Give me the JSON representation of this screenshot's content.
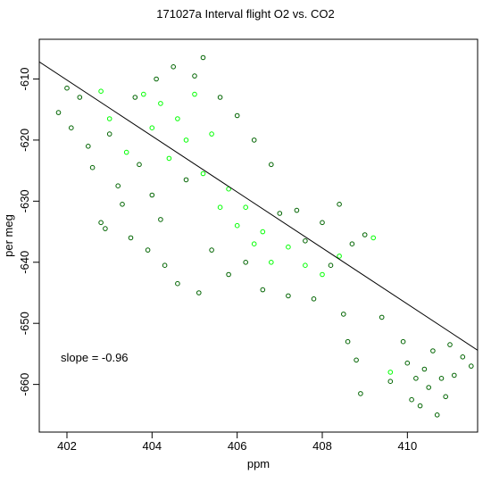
{
  "chart_data": {
    "type": "scatter",
    "title": "171027a   Interval flight O2 vs. CO2",
    "xlabel": "ppm",
    "ylabel": "per meg",
    "xlim": [
      401.35,
      411.65
    ],
    "ylim": [
      -667.8,
      -603.5
    ],
    "x_ticks": [
      402,
      404,
      406,
      408,
      410
    ],
    "x_tick_labels": [
      "402",
      "404",
      "406",
      "408",
      "410"
    ],
    "y_ticks": [
      -660,
      -650,
      -640,
      -630,
      -620,
      -610
    ],
    "y_tick_labels": [
      "-660",
      "-650",
      "-640",
      "-630",
      "-620",
      "-610"
    ],
    "grid": false,
    "legend": "none",
    "annotation": "slope =  -0.96",
    "regression_line": {
      "slope": -0.96,
      "points": [
        [
          401.35,
          -607.2
        ],
        [
          411.65,
          -654.4
        ]
      ]
    },
    "colors": {
      "points_dark": "#006400",
      "points_bright": "#00ff00",
      "line": "#000000"
    },
    "series": [
      {
        "marker": "open-circle",
        "color": "#006400",
        "points": [
          [
            401.8,
            -615.5
          ],
          [
            402.0,
            -611.5
          ],
          [
            402.1,
            -618.0
          ],
          [
            402.3,
            -613.0
          ],
          [
            402.5,
            -621.0
          ],
          [
            402.6,
            -624.5
          ],
          [
            402.8,
            -633.5
          ],
          [
            402.9,
            -634.5
          ],
          [
            403.0,
            -619.0
          ],
          [
            403.2,
            -627.5
          ],
          [
            403.3,
            -630.5
          ],
          [
            403.5,
            -636.0
          ],
          [
            403.6,
            -613.0
          ],
          [
            403.7,
            -624.0
          ],
          [
            403.9,
            -638.0
          ],
          [
            404.0,
            -629.0
          ],
          [
            404.1,
            -610.0
          ],
          [
            404.2,
            -633.0
          ],
          [
            404.3,
            -640.5
          ],
          [
            404.5,
            -608.0
          ],
          [
            404.6,
            -643.5
          ],
          [
            404.8,
            -626.5
          ],
          [
            405.0,
            -609.5
          ],
          [
            405.1,
            -645.0
          ],
          [
            405.2,
            -606.5
          ],
          [
            405.4,
            -638.0
          ],
          [
            405.6,
            -613.0
          ],
          [
            405.8,
            -642.0
          ],
          [
            406.0,
            -616.0
          ],
          [
            406.2,
            -640.0
          ],
          [
            406.4,
            -620.0
          ],
          [
            406.6,
            -644.5
          ],
          [
            406.8,
            -624.0
          ],
          [
            407.0,
            -632.0
          ],
          [
            407.2,
            -645.5
          ],
          [
            407.4,
            -631.5
          ],
          [
            407.6,
            -636.5
          ],
          [
            407.8,
            -646.0
          ],
          [
            408.0,
            -633.5
          ],
          [
            408.2,
            -640.5
          ],
          [
            408.4,
            -630.5
          ],
          [
            408.5,
            -648.5
          ],
          [
            408.6,
            -653.0
          ],
          [
            408.7,
            -637.0
          ],
          [
            408.8,
            -656.0
          ],
          [
            408.9,
            -661.5
          ],
          [
            409.0,
            -635.5
          ],
          [
            409.4,
            -649.0
          ],
          [
            409.6,
            -659.5
          ],
          [
            409.9,
            -653.0
          ],
          [
            410.0,
            -656.5
          ],
          [
            410.1,
            -662.5
          ],
          [
            410.2,
            -659.0
          ],
          [
            410.3,
            -663.5
          ],
          [
            410.4,
            -657.5
          ],
          [
            410.5,
            -660.5
          ],
          [
            410.6,
            -654.5
          ],
          [
            410.7,
            -665.0
          ],
          [
            410.8,
            -659.0
          ],
          [
            410.9,
            -662.0
          ],
          [
            411.0,
            -653.5
          ],
          [
            411.1,
            -658.5
          ],
          [
            411.3,
            -655.5
          ],
          [
            411.5,
            -657.0
          ]
        ]
      },
      {
        "marker": "open-circle",
        "color": "#00ff00",
        "points": [
          [
            402.8,
            -612.0
          ],
          [
            403.0,
            -616.5
          ],
          [
            403.4,
            -622.0
          ],
          [
            403.8,
            -612.5
          ],
          [
            404.0,
            -618.0
          ],
          [
            404.2,
            -614.0
          ],
          [
            404.4,
            -623.0
          ],
          [
            404.6,
            -616.5
          ],
          [
            404.8,
            -620.0
          ],
          [
            405.0,
            -612.5
          ],
          [
            405.2,
            -625.5
          ],
          [
            405.4,
            -619.0
          ],
          [
            405.6,
            -631.0
          ],
          [
            405.8,
            -628.0
          ],
          [
            406.0,
            -634.0
          ],
          [
            406.2,
            -631.0
          ],
          [
            406.4,
            -637.0
          ],
          [
            406.6,
            -635.0
          ],
          [
            406.8,
            -640.0
          ],
          [
            407.2,
            -637.5
          ],
          [
            407.6,
            -640.5
          ],
          [
            408.0,
            -642.0
          ],
          [
            408.4,
            -639.0
          ],
          [
            409.2,
            -636.0
          ],
          [
            409.6,
            -658.0
          ]
        ]
      }
    ]
  }
}
